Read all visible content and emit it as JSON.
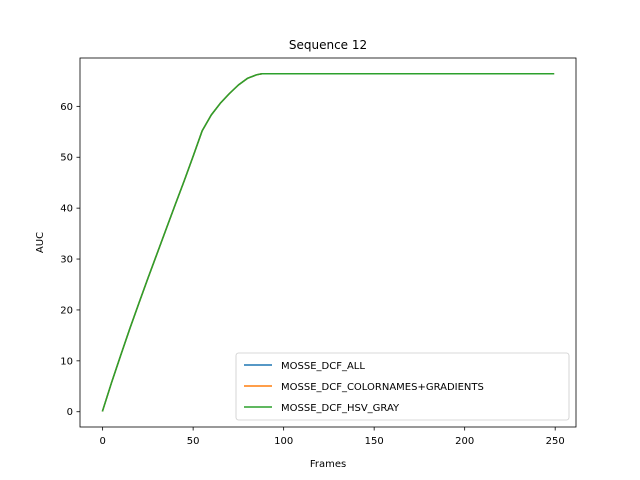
{
  "chart_data": {
    "type": "line",
    "title": "Sequence 12",
    "xlabel": "Frames",
    "ylabel": "AUC",
    "xlim": [
      -12.5,
      261.5
    ],
    "ylim": [
      -3.0,
      69.5
    ],
    "xticks": [
      0,
      50,
      100,
      150,
      200,
      250
    ],
    "yticks": [
      0,
      10,
      20,
      30,
      40,
      50,
      60
    ],
    "legend_position": "lower right",
    "grid": false,
    "x": [
      0,
      5,
      10,
      15,
      20,
      25,
      30,
      35,
      40,
      45,
      50,
      55,
      60,
      65,
      70,
      75,
      80,
      85,
      88,
      90,
      100,
      150,
      200,
      249
    ],
    "series": [
      {
        "name": "MOSSE_DCF_ALL",
        "color": "#1f77b4",
        "values": [
          0.2,
          5.8,
          11.1,
          16.3,
          21.3,
          26.2,
          31.0,
          35.8,
          40.6,
          45.3,
          50.2,
          55.2,
          58.3,
          60.6,
          62.5,
          64.2,
          65.5,
          66.2,
          66.4,
          66.4,
          66.4,
          66.4,
          66.4,
          66.4
        ]
      },
      {
        "name": "MOSSE_DCF_COLORNAMES+GRADIENTS",
        "color": "#ff7f0e",
        "values": [
          0.2,
          5.8,
          11.1,
          16.3,
          21.3,
          26.2,
          31.0,
          35.8,
          40.6,
          45.3,
          50.2,
          55.2,
          58.3,
          60.6,
          62.5,
          64.2,
          65.5,
          66.2,
          66.4,
          66.4,
          66.4,
          66.4,
          66.4,
          66.4
        ]
      },
      {
        "name": "MOSSE_DCF_HSV_GRAY",
        "color": "#2ca02c",
        "values": [
          0.2,
          5.8,
          11.1,
          16.3,
          21.3,
          26.2,
          31.0,
          35.8,
          40.6,
          45.3,
          50.2,
          55.2,
          58.3,
          60.6,
          62.5,
          64.2,
          65.5,
          66.2,
          66.4,
          66.4,
          66.4,
          66.4,
          66.4,
          66.4
        ]
      }
    ]
  }
}
